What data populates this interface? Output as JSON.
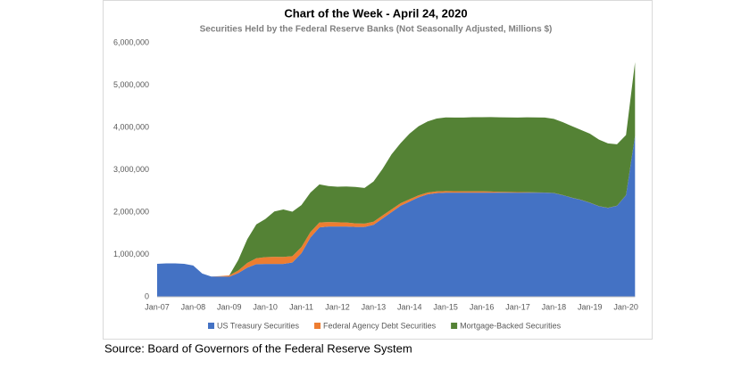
{
  "chart_data": {
    "type": "area",
    "stacked": true,
    "title": "Chart of the Week - April 24, 2020",
    "subtitle": "Securities Held by the Federal Reserve Banks (Not Seasonally Adjusted, Millions $)",
    "x": [
      "Jan-07",
      "Apr-07",
      "Jul-07",
      "Oct-07",
      "Jan-08",
      "Apr-08",
      "Jul-08",
      "Oct-08",
      "Jan-09",
      "Apr-09",
      "Jul-09",
      "Oct-09",
      "Jan-10",
      "Apr-10",
      "Jul-10",
      "Oct-10",
      "Jan-11",
      "Apr-11",
      "Jul-11",
      "Oct-11",
      "Jan-12",
      "Apr-12",
      "Jul-12",
      "Oct-12",
      "Jan-13",
      "Apr-13",
      "Jul-13",
      "Oct-13",
      "Jan-14",
      "Apr-14",
      "Jul-14",
      "Oct-14",
      "Jan-15",
      "Apr-15",
      "Jul-15",
      "Oct-15",
      "Jan-16",
      "Apr-16",
      "Jul-16",
      "Oct-16",
      "Jan-17",
      "Apr-17",
      "Jul-17",
      "Oct-17",
      "Jan-18",
      "Apr-18",
      "Jul-18",
      "Oct-18",
      "Jan-19",
      "Apr-19",
      "Jul-19",
      "Oct-19",
      "Jan-20",
      "Apr-20"
    ],
    "xticks": [
      0,
      4,
      8,
      12,
      16,
      20,
      24,
      28,
      32,
      36,
      40,
      44,
      48,
      52
    ],
    "series": [
      {
        "name": "US Treasury Securities",
        "color": "#4472c4",
        "values": [
          780000,
          790000,
          790000,
          780000,
          740000,
          550000,
          480000,
          480000,
          475000,
          560000,
          690000,
          770000,
          777000,
          777000,
          777000,
          810000,
          1030000,
          1400000,
          1640000,
          1660000,
          1660000,
          1660000,
          1650000,
          1650000,
          1700000,
          1850000,
          2000000,
          2150000,
          2250000,
          2350000,
          2420000,
          2450000,
          2460000,
          2460000,
          2460000,
          2460000,
          2460000,
          2460000,
          2460000,
          2460000,
          2460000,
          2460000,
          2460000,
          2460000,
          2450000,
          2400000,
          2340000,
          2290000,
          2220000,
          2140000,
          2100000,
          2150000,
          2400000,
          3800000
        ]
      },
      {
        "name": "Federal Agency Debt Securities",
        "color": "#ed7d31",
        "values": [
          0,
          0,
          0,
          0,
          0,
          0,
          0,
          10000,
          30000,
          60000,
          110000,
          140000,
          160000,
          168000,
          165000,
          150000,
          145000,
          130000,
          115000,
          105000,
          100000,
          95000,
          85000,
          80000,
          75000,
          70000,
          65000,
          60000,
          55000,
          48000,
          43000,
          40000,
          37000,
          34000,
          33000,
          33000,
          32000,
          26000,
          20000,
          17000,
          13000,
          10000,
          6000,
          4000,
          2400,
          2400,
          2400,
          2400,
          2400,
          2400,
          2400,
          2400,
          2300,
          2300
        ]
      },
      {
        "name": "Mortgage-Backed Securities",
        "color": "#548235",
        "values": [
          0,
          0,
          0,
          0,
          0,
          0,
          0,
          0,
          0,
          250000,
          560000,
          800000,
          900000,
          1070000,
          1120000,
          1050000,
          990000,
          930000,
          900000,
          850000,
          840000,
          850000,
          860000,
          840000,
          950000,
          1100000,
          1300000,
          1420000,
          1550000,
          1630000,
          1680000,
          1720000,
          1740000,
          1740000,
          1740000,
          1750000,
          1750000,
          1760000,
          1760000,
          1760000,
          1760000,
          1770000,
          1770000,
          1770000,
          1750000,
          1720000,
          1690000,
          1650000,
          1630000,
          1570000,
          1520000,
          1450000,
          1420000,
          1740000
        ]
      }
    ],
    "ylim": [
      0,
      6000000
    ],
    "yticks": [
      0,
      {
        "value": 1000000,
        "label": "1,000,000"
      },
      {
        "value": 2000000,
        "label": "2,000,000"
      },
      {
        "value": 3000000,
        "label": "3,000,000"
      },
      {
        "value": 4000000,
        "label": "4,000,000"
      },
      {
        "value": 5000000,
        "label": "5,000,000"
      },
      {
        "value": 6000000,
        "label": "6,000,000"
      }
    ],
    "grid": false,
    "legend": "bottom"
  },
  "source": "Source: Board of Governors of the Federal Reserve System"
}
